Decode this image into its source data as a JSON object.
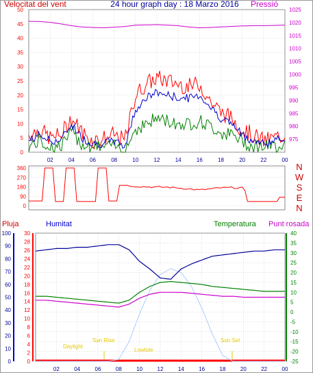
{
  "header": {
    "title": "24 hour graph day : 18 Marzo 2016",
    "left_label": "Velocitat del vent",
    "right_label": "Pressió"
  },
  "mid_panel": {
    "compass_labels": [
      "N",
      "W",
      "S",
      "E",
      "N"
    ]
  },
  "bottom_panel": {
    "labels": {
      "rain": "Pluja",
      "humidity": "Humitat",
      "temperature": "Temperatura",
      "dew_point": "Punt rosada"
    },
    "sun_annotations": [
      "Daylight",
      "Sun Rise",
      "Lowtide",
      "Sun Set"
    ]
  },
  "colors": {
    "wind": "#ff0000",
    "wind_avg": "#0000cc",
    "wind_green": "#008000",
    "pressure": "#cc00cc",
    "humidity": "#000099",
    "temperature": "#008000",
    "dew": "#cc00cc",
    "sun": "#aaccff",
    "annot": "#e6c800",
    "rain_axis": "#ff0000",
    "humidity_axis": "#0000cc",
    "temperature_axis": "#008000",
    "grid": "#bbbbbb"
  },
  "chart_data": [
    {
      "id": "wind",
      "type": "line",
      "xlabel": "",
      "x_ticks": [
        "02",
        "04",
        "06",
        "08",
        "10",
        "12",
        "14",
        "16",
        "18",
        "20",
        "22",
        "00"
      ],
      "ylim_left": [
        0,
        50
      ],
      "ylabel_left": "Velocitat del vent",
      "y_ticks_left": [
        0,
        5,
        10,
        15,
        20,
        25,
        30,
        35,
        40,
        45,
        50
      ],
      "ylim_right": [
        970,
        1025
      ],
      "ylabel_right": "Pressió",
      "y_ticks_right": [
        975,
        980,
        985,
        990,
        995,
        1000,
        1005,
        1010,
        1015,
        1020,
        1025
      ],
      "x_hours": [
        0,
        1,
        2,
        3,
        4,
        5,
        6,
        7,
        8,
        9,
        10,
        11,
        12,
        13,
        14,
        15,
        16,
        17,
        18,
        19,
        20,
        21,
        22,
        23,
        24
      ],
      "series": [
        {
          "key": "gust",
          "values": [
            6,
            8,
            5,
            6,
            12,
            7,
            4,
            5,
            6,
            4,
            20,
            24,
            26,
            25,
            24,
            23,
            24,
            18,
            14,
            12,
            8,
            6,
            4,
            5,
            6
          ]
        },
        {
          "key": "avg",
          "values": [
            4,
            6,
            4,
            4,
            10,
            5,
            3,
            3,
            4,
            2,
            15,
            19,
            21,
            20,
            19,
            19,
            20,
            16,
            12,
            10,
            6,
            4,
            3,
            4,
            5
          ]
        },
        {
          "key": "low",
          "values": [
            2,
            4,
            2,
            2,
            7,
            3,
            2,
            2,
            2,
            1,
            8,
            10,
            12,
            11,
            10,
            10,
            11,
            9,
            7,
            6,
            4,
            2,
            2,
            2,
            3
          ]
        },
        {
          "key": "pressure",
          "values": [
            1020.5,
            1020.4,
            1020.1,
            1019.5,
            1018.8,
            1018.3,
            1018.1,
            1018.0,
            1018.2,
            1018.5,
            1019.0,
            1019.1,
            1019.2,
            1019.0,
            1018.8,
            1018.3,
            1018.0,
            1018.1,
            1018.3,
            1018.5,
            1018.7,
            1018.8,
            1018.8,
            1018.9,
            1019.0
          ]
        }
      ]
    },
    {
      "id": "direction",
      "type": "line",
      "ylim": [
        0,
        360
      ],
      "y_ticks": [
        0,
        90,
        180,
        270,
        360
      ],
      "x_hours": [
        0,
        1,
        2,
        3,
        4,
        5,
        6,
        7,
        8,
        9,
        10,
        11,
        12,
        13,
        14,
        15,
        16,
        17,
        18,
        19,
        20,
        21,
        22,
        23,
        24
      ],
      "values": [
        45,
        45,
        360,
        40,
        360,
        40,
        40,
        360,
        45,
        195,
        185,
        180,
        178,
        176,
        170,
        160,
        150,
        160,
        170,
        172,
        170,
        40,
        40,
        40,
        80
      ]
    },
    {
      "id": "climate",
      "type": "line",
      "x_ticks": [
        "02",
        "04",
        "06",
        "08",
        "10",
        "12",
        "14",
        "16",
        "18",
        "20",
        "22",
        "00"
      ],
      "ylim_rain": [
        0,
        30
      ],
      "y_ticks_rain": [
        0,
        2,
        4,
        6,
        8,
        10,
        12,
        14,
        16,
        18,
        20,
        22,
        24,
        26,
        28,
        30
      ],
      "ylim_humidity": [
        0,
        100
      ],
      "y_ticks_humidity": [
        0,
        10,
        20,
        30,
        40,
        50,
        60,
        70,
        80,
        90,
        100
      ],
      "ylim_temperature": [
        -25,
        40
      ],
      "y_ticks_temperature": [
        -25,
        -20,
        -15,
        -10,
        -5,
        0,
        5,
        10,
        15,
        20,
        25,
        30,
        35,
        40
      ],
      "x_hours": [
        0,
        1,
        2,
        3,
        4,
        5,
        6,
        7,
        8,
        9,
        10,
        11,
        12,
        13,
        14,
        15,
        16,
        17,
        18,
        19,
        20,
        21,
        22,
        23,
        24
      ],
      "series": [
        {
          "key": "humidity",
          "values": [
            86,
            87,
            88,
            88,
            89,
            89,
            90,
            91,
            91,
            87,
            78,
            72,
            65,
            64,
            72,
            76,
            79,
            82,
            83,
            84,
            85,
            86,
            86,
            87,
            87
          ]
        },
        {
          "key": "temperature",
          "values": [
            8,
            8,
            7.5,
            7,
            6.5,
            6,
            5.5,
            5,
            4.5,
            6,
            10,
            13,
            15,
            15.5,
            15,
            14.5,
            14,
            13,
            12.5,
            12,
            11.5,
            11,
            10.5,
            10.5,
            10.5
          ]
        },
        {
          "key": "dew_point",
          "values": [
            6,
            6,
            5.5,
            5,
            4.5,
            4,
            3.5,
            3,
            2.5,
            4,
            7,
            9,
            10,
            10,
            10,
            9.5,
            9,
            8.5,
            8,
            8,
            7.5,
            7.5,
            7.5,
            7.5,
            7.5
          ]
        },
        {
          "key": "sun",
          "values": [
            -25,
            -25,
            -25,
            -25,
            -25,
            -25,
            -25,
            -25,
            -24,
            -15,
            -1,
            11,
            19,
            22,
            20,
            13,
            2,
            -11,
            -22,
            -25,
            -25,
            -25,
            -25,
            -25,
            -25
          ]
        }
      ]
    }
  ]
}
